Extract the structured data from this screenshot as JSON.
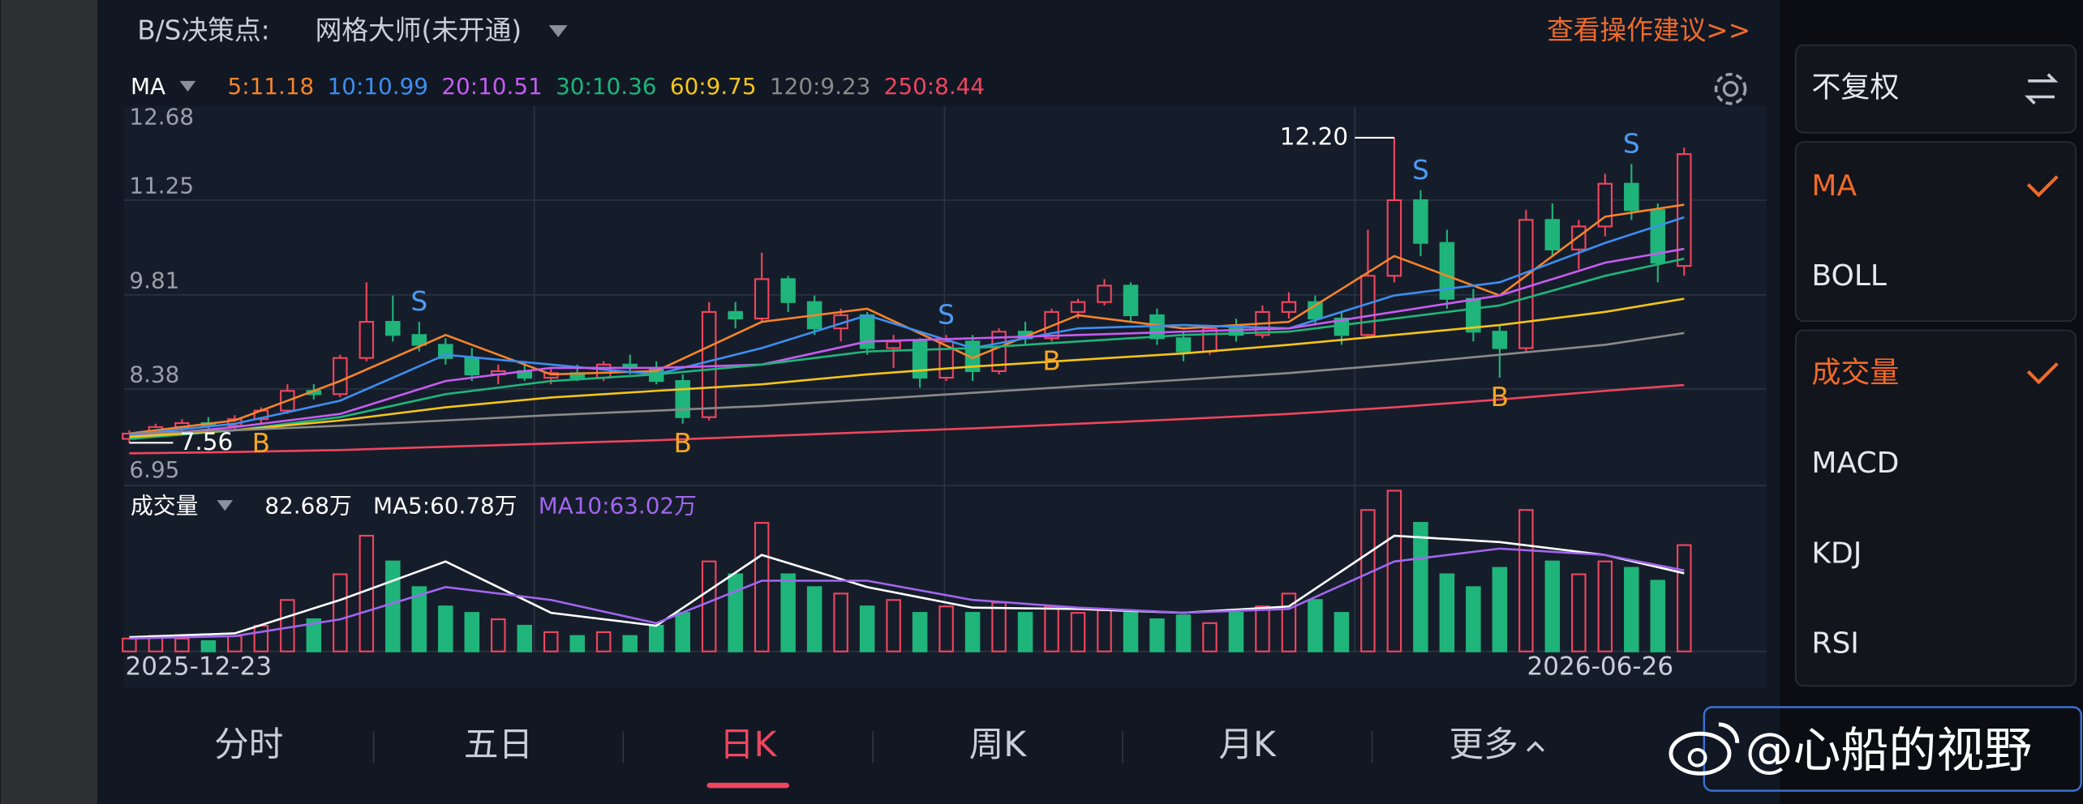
{
  "header": {
    "bs_label": "B/S决策点:",
    "strategy": "网格大师(未开通)",
    "advice": "查看操作建议>>"
  },
  "chart_data": {
    "type": "candlestick",
    "ma_label": "MA",
    "ylim": [
      6.95,
      12.68
    ],
    "yticks": [
      12.68,
      11.25,
      9.81,
      8.38,
      6.95
    ],
    "up_color": "#f0455e",
    "down_color": "#1fb57a",
    "open": [
      7.62,
      7.7,
      7.8,
      7.86,
      7.82,
      7.92,
      8.05,
      8.35,
      8.3,
      8.85,
      9.4,
      9.2,
      9.05,
      8.85,
      8.6,
      8.65,
      8.55,
      8.62,
      8.55,
      8.75,
      8.7,
      8.5,
      7.95,
      9.55,
      9.45,
      10.05,
      9.7,
      9.3,
      9.5,
      9.0,
      9.1,
      8.55,
      9.1,
      8.65,
      9.25,
      9.15,
      9.55,
      9.7,
      9.95,
      9.5,
      9.15,
      8.95,
      9.3,
      9.2,
      9.55,
      9.7,
      9.45,
      9.2,
      10.1,
      11.25,
      10.6,
      9.75,
      9.25,
      9.0,
      10.95,
      10.5,
      10.85,
      11.5,
      11.1,
      10.25
    ],
    "high": [
      7.75,
      7.85,
      7.92,
      7.95,
      7.98,
      8.1,
      8.45,
      8.45,
      8.9,
      10.0,
      9.8,
      9.4,
      9.15,
      9.0,
      8.75,
      8.8,
      8.7,
      8.75,
      8.8,
      8.9,
      8.8,
      8.6,
      9.7,
      9.7,
      10.45,
      10.1,
      9.8,
      9.6,
      9.55,
      9.2,
      9.15,
      9.2,
      9.2,
      9.3,
      9.4,
      9.6,
      9.75,
      10.05,
      10.0,
      9.6,
      9.25,
      9.35,
      9.45,
      9.65,
      9.85,
      9.8,
      9.55,
      10.8,
      12.2,
      11.4,
      10.8,
      9.9,
      9.35,
      11.1,
      11.2,
      10.95,
      11.65,
      11.8,
      11.2,
      12.05
    ],
    "low": [
      7.56,
      7.65,
      7.72,
      7.78,
      7.76,
      7.85,
      8.0,
      8.22,
      8.25,
      8.8,
      9.1,
      8.95,
      8.75,
      8.5,
      8.45,
      8.5,
      8.45,
      8.5,
      8.5,
      8.6,
      8.45,
      7.85,
      7.9,
      9.3,
      9.4,
      9.55,
      9.2,
      9.1,
      8.9,
      8.7,
      8.4,
      8.5,
      8.5,
      8.6,
      9.05,
      9.1,
      9.45,
      9.65,
      9.4,
      9.05,
      8.8,
      8.9,
      9.1,
      9.15,
      9.45,
      9.35,
      9.05,
      9.15,
      10.0,
      10.4,
      9.6,
      9.1,
      8.55,
      8.95,
      10.4,
      10.2,
      10.7,
      10.95,
      10.0,
      10.1
    ],
    "close": [
      7.7,
      7.8,
      7.86,
      7.82,
      7.92,
      8.05,
      8.35,
      8.3,
      8.85,
      9.4,
      9.2,
      9.05,
      8.85,
      8.6,
      8.65,
      8.55,
      8.62,
      8.55,
      8.75,
      8.7,
      8.5,
      7.95,
      9.55,
      9.45,
      10.05,
      9.7,
      9.3,
      9.5,
      9.0,
      9.1,
      8.55,
      9.1,
      8.65,
      9.25,
      9.15,
      9.55,
      9.7,
      9.95,
      9.5,
      9.15,
      8.95,
      9.3,
      9.2,
      9.55,
      9.7,
      9.45,
      9.2,
      10.1,
      11.25,
      10.6,
      9.75,
      9.25,
      9.0,
      10.95,
      10.5,
      10.85,
      11.5,
      11.1,
      10.3,
      11.95
    ],
    "ma_index": [
      0,
      4,
      8,
      12,
      16,
      20,
      24,
      28,
      32,
      36,
      40,
      44,
      48,
      52,
      56,
      59
    ],
    "ma_series": [
      {
        "name": "5:11.18",
        "color": "#f5842b",
        "values": [
          7.7,
          7.9,
          8.5,
          9.2,
          8.6,
          8.65,
          9.4,
          9.6,
          8.85,
          9.5,
          9.3,
          9.4,
          10.4,
          9.8,
          11.0,
          11.18
        ]
      },
      {
        "name": "10:10.99",
        "color": "#3d8ef0",
        "values": [
          7.68,
          7.85,
          8.2,
          8.9,
          8.75,
          8.6,
          9.0,
          9.5,
          9.0,
          9.3,
          9.35,
          9.3,
          9.8,
          10.0,
          10.6,
          10.99
        ]
      },
      {
        "name": "20:10.51",
        "color": "#c65cf0",
        "values": [
          7.65,
          7.8,
          8.0,
          8.5,
          8.7,
          8.7,
          8.75,
          9.1,
          9.15,
          9.2,
          9.25,
          9.3,
          9.55,
          9.8,
          10.3,
          10.51
        ]
      },
      {
        "name": "30:10.36",
        "color": "#1fb57a",
        "values": [
          7.62,
          7.75,
          7.95,
          8.3,
          8.5,
          8.6,
          8.75,
          8.95,
          9.0,
          9.1,
          9.2,
          9.25,
          9.45,
          9.65,
          10.1,
          10.36
        ]
      },
      {
        "name": "60:9.75",
        "color": "#f5c518",
        "values": [
          7.65,
          7.75,
          7.9,
          8.1,
          8.25,
          8.35,
          8.45,
          8.6,
          8.72,
          8.82,
          8.92,
          9.05,
          9.2,
          9.35,
          9.55,
          9.75
        ]
      },
      {
        "name": "120:9.23",
        "color": "#8a8a8a",
        "values": [
          7.7,
          7.75,
          7.82,
          7.9,
          7.98,
          8.05,
          8.12,
          8.22,
          8.32,
          8.42,
          8.52,
          8.62,
          8.75,
          8.9,
          9.05,
          9.23
        ]
      },
      {
        "name": "250:8.44",
        "color": "#f0455e",
        "values": [
          7.4,
          7.42,
          7.45,
          7.5,
          7.55,
          7.6,
          7.66,
          7.72,
          7.78,
          7.85,
          7.92,
          8.0,
          8.1,
          8.22,
          8.35,
          8.44
        ]
      }
    ],
    "high_label": {
      "index": 48,
      "value": 12.2,
      "label": "12.20"
    },
    "low_label": {
      "index": 0,
      "value": 7.56,
      "label": "7.56"
    },
    "signals": [
      {
        "label": "B",
        "index": 5,
        "color": "#f5a623"
      },
      {
        "label": "S",
        "index": 11,
        "color": "#4d9bf5"
      },
      {
        "label": "B",
        "index": 21,
        "color": "#f5a623"
      },
      {
        "label": "S",
        "index": 31,
        "color": "#4d9bf5"
      },
      {
        "label": "B",
        "index": 35,
        "color": "#f5a623"
      },
      {
        "label": "S",
        "index": 49,
        "color": "#4d9bf5"
      },
      {
        "label": "B",
        "index": 52,
        "color": "#f5a623"
      },
      {
        "label": "S",
        "index": 57,
        "color": "#4d9bf5"
      }
    ],
    "x_labels": [
      {
        "index": 0,
        "label": "2025-12-23"
      },
      {
        "index": 59,
        "label": "2026-06-26"
      }
    ],
    "volume": {
      "label": "成交量",
      "value_text": "82.68万",
      "ylim": [
        0,
        130
      ],
      "values": [
        10,
        12,
        10,
        8,
        12,
        20,
        40,
        25,
        60,
        90,
        70,
        50,
        35,
        30,
        25,
        20,
        15,
        12,
        15,
        12,
        20,
        30,
        70,
        60,
        100,
        60,
        50,
        45,
        35,
        40,
        30,
        35,
        30,
        38,
        30,
        35,
        30,
        32,
        30,
        25,
        28,
        22,
        30,
        35,
        45,
        40,
        30,
        110,
        125,
        100,
        60,
        50,
        65,
        110,
        70,
        60,
        70,
        65,
        55,
        82.68
      ],
      "ma_series": [
        {
          "name": "MA5:60.78万",
          "color": "#ffffff",
          "values": [
            11,
            14,
            40,
            70,
            30,
            20,
            75,
            50,
            34,
            33,
            30,
            35,
            90,
            85,
            75,
            60.78
          ]
        },
        {
          "name": "MA10:63.02万",
          "color": "#a066f0",
          "values": [
            10,
            12,
            25,
            50,
            40,
            22,
            55,
            55,
            40,
            34,
            30,
            33,
            70,
            80,
            75,
            63.02
          ]
        }
      ]
    }
  },
  "right_panel": {
    "adjust": "不复权",
    "groups": [
      [
        {
          "label": "MA",
          "checked": true
        },
        {
          "label": "BOLL",
          "checked": false
        }
      ],
      [
        {
          "label": "成交量",
          "checked": true
        },
        {
          "label": "MACD",
          "checked": false
        },
        {
          "label": "KDJ",
          "checked": false
        },
        {
          "label": "RSI",
          "checked": false
        }
      ]
    ]
  },
  "tabs": {
    "items": [
      "分时",
      "五日",
      "日K",
      "周K",
      "月K",
      "更多"
    ],
    "active": 2
  },
  "watermark": "@心船的视野"
}
